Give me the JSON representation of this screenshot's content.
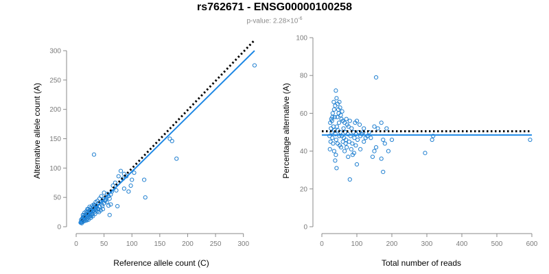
{
  "title": "rs762671 - ENSG00000100258",
  "subtitle": {
    "prefix": "p-value: 2.28×10",
    "exponent": "-6"
  },
  "colors": {
    "points": "#1f7fd0",
    "fit_line": "#1e88e5",
    "reference_line": "#000000",
    "axis": "#8a8a8a"
  },
  "chart_data": [
    {
      "type": "scatter",
      "xlabel": "Reference allele count (C)",
      "ylabel": "Alternative allele count (A)",
      "xlim": [
        0,
        325
      ],
      "ylim": [
        0,
        300
      ],
      "xticks": [
        0,
        50,
        100,
        150,
        200,
        250,
        300
      ],
      "yticks": [
        0,
        50,
        100,
        150,
        200,
        250,
        300
      ],
      "reference_line": {
        "style": "dotted",
        "x": [
          10,
          320
        ],
        "y": [
          10,
          318
        ]
      },
      "fit_line": {
        "style": "solid",
        "x": [
          5,
          320
        ],
        "y": [
          5,
          300
        ]
      },
      "points": [
        [
          320,
          275
        ],
        [
          168,
          150
        ],
        [
          172,
          146
        ],
        [
          180,
          116
        ],
        [
          32,
          123
        ],
        [
          122,
          80
        ],
        [
          104,
          92
        ],
        [
          100,
          80
        ],
        [
          98,
          70
        ],
        [
          90,
          86
        ],
        [
          86,
          90
        ],
        [
          84,
          82
        ],
        [
          80,
          95
        ],
        [
          76,
          86
        ],
        [
          70,
          75
        ],
        [
          72,
          62
        ],
        [
          66,
          70
        ],
        [
          64,
          60
        ],
        [
          62,
          55
        ],
        [
          60,
          48
        ],
        [
          58,
          52
        ],
        [
          56,
          56
        ],
        [
          55,
          42
        ],
        [
          54,
          50
        ],
        [
          52,
          44
        ],
        [
          50,
          40
        ],
        [
          50,
          58
        ],
        [
          48,
          47
        ],
        [
          46,
          38
        ],
        [
          45,
          52
        ],
        [
          44,
          42
        ],
        [
          42,
          34
        ],
        [
          42,
          48
        ],
        [
          40,
          40
        ],
        [
          39,
          30
        ],
        [
          38,
          44
        ],
        [
          36,
          36
        ],
        [
          36,
          28
        ],
        [
          35,
          42
        ],
        [
          34,
          32
        ],
        [
          33,
          25
        ],
        [
          32,
          38
        ],
        [
          31,
          28
        ],
        [
          30,
          22
        ],
        [
          30,
          33
        ],
        [
          29,
          26
        ],
        [
          28,
          30
        ],
        [
          27,
          18
        ],
        [
          27,
          22
        ],
        [
          26,
          28
        ],
        [
          26,
          15
        ],
        [
          25,
          24
        ],
        [
          25,
          19
        ],
        [
          24,
          21
        ],
        [
          24,
          28
        ],
        [
          23,
          16
        ],
        [
          23,
          25
        ],
        [
          22,
          22
        ],
        [
          22,
          12
        ],
        [
          21,
          18
        ],
        [
          21,
          26
        ],
        [
          20,
          14
        ],
        [
          20,
          20
        ],
        [
          20,
          30
        ],
        [
          19,
          11
        ],
        [
          19,
          17
        ],
        [
          18,
          22
        ],
        [
          18,
          13
        ],
        [
          17,
          15
        ],
        [
          17,
          20
        ],
        [
          16,
          10
        ],
        [
          16,
          18
        ],
        [
          15,
          14
        ],
        [
          15,
          24
        ],
        [
          14,
          12
        ],
        [
          14,
          17
        ],
        [
          13,
          9
        ],
        [
          13,
          15
        ],
        [
          12,
          11
        ],
        [
          12,
          20
        ],
        [
          11,
          8
        ],
        [
          11,
          14
        ],
        [
          10,
          10
        ],
        [
          10,
          6
        ],
        [
          9,
          12
        ],
        [
          9,
          8
        ],
        [
          8,
          7
        ],
        [
          26,
          32
        ],
        [
          28,
          20
        ],
        [
          30,
          18
        ],
        [
          34,
          22
        ],
        [
          38,
          26
        ],
        [
          40,
          30
        ],
        [
          44,
          28
        ],
        [
          48,
          30
        ],
        [
          60,
          20
        ],
        [
          124,
          50
        ],
        [
          62,
          38
        ],
        [
          74,
          35
        ],
        [
          86,
          65
        ],
        [
          94,
          60
        ],
        [
          22,
          30
        ],
        [
          24,
          34
        ],
        [
          18,
          26
        ],
        [
          14,
          20
        ],
        [
          12,
          16
        ],
        [
          58,
          36
        ],
        [
          53,
          46
        ],
        [
          47,
          35
        ],
        [
          41,
          25
        ],
        [
          37,
          34
        ],
        [
          33,
          36
        ],
        [
          29,
          36
        ]
      ]
    },
    {
      "type": "scatter",
      "xlabel": "Total number of reads",
      "ylabel": "Percentage alternative (A)",
      "xlim": [
        0,
        600
      ],
      "ylim": [
        0,
        100
      ],
      "xticks": [
        0,
        100,
        200,
        300,
        400,
        500,
        600
      ],
      "yticks": [
        0,
        20,
        40,
        60,
        80,
        100
      ],
      "reference_line": {
        "style": "dotted",
        "x": [
          0,
          600
        ],
        "y": [
          50.5,
          50.5
        ]
      },
      "fit_line": {
        "style": "solid",
        "x": [
          0,
          600
        ],
        "y": [
          48.5,
          48.5
        ]
      },
      "points": [
        [
          155,
          79
        ],
        [
          40,
          72
        ],
        [
          42,
          68
        ],
        [
          45,
          65
        ],
        [
          38,
          64
        ],
        [
          50,
          66
        ],
        [
          52,
          63
        ],
        [
          35,
          62
        ],
        [
          48,
          60
        ],
        [
          44,
          58
        ],
        [
          30,
          58
        ],
        [
          56,
          57
        ],
        [
          60,
          56
        ],
        [
          65,
          55
        ],
        [
          70,
          57
        ],
        [
          72,
          54
        ],
        [
          80,
          56
        ],
        [
          85,
          52
        ],
        [
          90,
          50
        ],
        [
          95,
          55
        ],
        [
          100,
          56
        ],
        [
          105,
          50
        ],
        [
          110,
          48
        ],
        [
          120,
          52
        ],
        [
          130,
          48
        ],
        [
          140,
          47
        ],
        [
          150,
          53
        ],
        [
          160,
          52
        ],
        [
          170,
          55
        ],
        [
          175,
          46
        ],
        [
          180,
          44
        ],
        [
          185,
          52
        ],
        [
          200,
          46
        ],
        [
          190,
          40
        ],
        [
          150,
          40
        ],
        [
          155,
          42
        ],
        [
          145,
          37
        ],
        [
          170,
          36
        ],
        [
          175,
          29
        ],
        [
          295,
          39
        ],
        [
          315,
          46
        ],
        [
          318,
          48
        ],
        [
          595,
          46
        ],
        [
          80,
          25
        ],
        [
          100,
          33
        ],
        [
          110,
          41
        ],
        [
          120,
          45
        ],
        [
          88,
          38
        ],
        [
          75,
          37
        ],
        [
          65,
          40
        ],
        [
          60,
          45
        ],
        [
          55,
          42
        ],
        [
          50,
          48
        ],
        [
          45,
          44
        ],
        [
          40,
          38
        ],
        [
          38,
          35
        ],
        [
          42,
          31
        ],
        [
          35,
          40
        ],
        [
          32,
          44
        ],
        [
          30,
          47
        ],
        [
          28,
          50
        ],
        [
          26,
          52
        ],
        [
          25,
          45
        ],
        [
          24,
          55
        ],
        [
          23,
          41
        ],
        [
          22,
          48
        ],
        [
          27,
          57
        ],
        [
          33,
          53
        ],
        [
          36,
          51
        ],
        [
          39,
          49
        ],
        [
          41,
          46
        ],
        [
          43,
          53
        ],
        [
          46,
          51
        ],
        [
          49,
          55
        ],
        [
          51,
          43
        ],
        [
          53,
          50
        ],
        [
          57,
          48
        ],
        [
          62,
          52
        ],
        [
          67,
          50
        ],
        [
          69,
          46
        ],
        [
          74,
          49
        ],
        [
          78,
          45
        ],
        [
          82,
          48
        ],
        [
          87,
          44
        ],
        [
          93,
          47
        ],
        [
          97,
          43
        ],
        [
          102,
          46
        ],
        [
          115,
          49
        ],
        [
          125,
          47
        ],
        [
          135,
          50
        ],
        [
          31,
          60
        ],
        [
          29,
          56
        ],
        [
          34,
          66
        ],
        [
          37,
          58
        ],
        [
          47,
          62
        ],
        [
          54,
          59
        ],
        [
          58,
          61
        ],
        [
          63,
          47
        ],
        [
          68,
          44
        ],
        [
          71,
          42
        ],
        [
          76,
          53
        ],
        [
          84,
          41
        ],
        [
          92,
          39
        ],
        [
          98,
          49
        ],
        [
          108,
          54
        ],
        [
          118,
          50
        ]
      ]
    }
  ]
}
